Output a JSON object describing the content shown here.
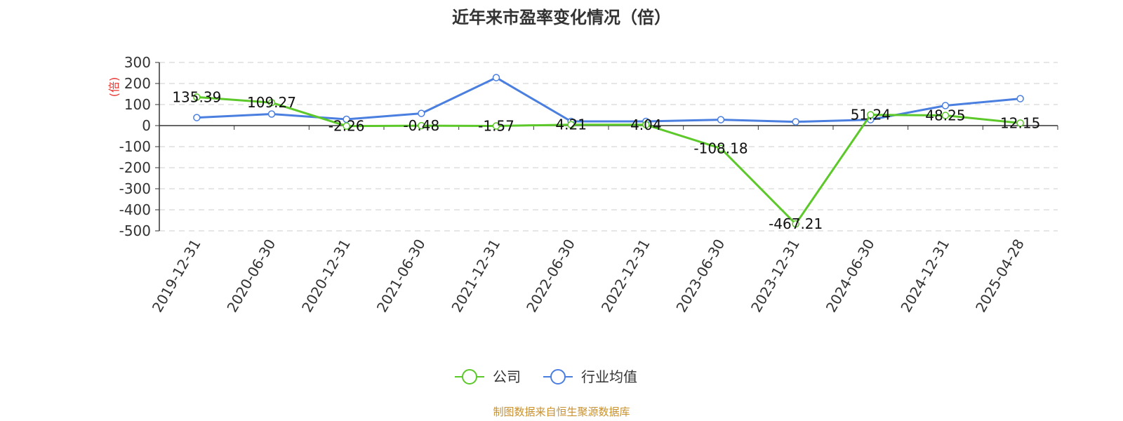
{
  "chart_data": {
    "type": "line",
    "title": "近年来市盈率变化情况（倍）",
    "y_unit_label": "(倍)",
    "categories": [
      "2019-12-31",
      "2020-06-30",
      "2020-12-31",
      "2021-06-30",
      "2021-12-31",
      "2022-06-30",
      "2022-12-31",
      "2023-06-30",
      "2023-12-31",
      "2024-06-30",
      "2024-12-31",
      "2025-04-28"
    ],
    "series": [
      {
        "name": "公司",
        "color": "#5cc82a",
        "values": [
          135.39,
          109.27,
          -2.26,
          -0.48,
          -1.57,
          4.21,
          4.04,
          -108.18,
          -467.21,
          51.24,
          48.25,
          12.15
        ],
        "labels": [
          "135.39",
          "109.27",
          "-2.26",
          "-0.48",
          "-1.57",
          "4.21",
          "4.04",
          "-108.18",
          "-467.21",
          "51.24",
          "48.25",
          "12.15"
        ]
      },
      {
        "name": "行业均值",
        "color": "#4a7fe0",
        "values": [
          38,
          55,
          30,
          58,
          228,
          20,
          20,
          28,
          18,
          28,
          95,
          128
        ]
      }
    ],
    "ylim": [
      -500,
      300
    ],
    "yticks": [
      300,
      200,
      100,
      0,
      -100,
      -200,
      -300,
      -400,
      -500
    ],
    "grid": true,
    "legend_position": "bottom-center"
  },
  "source": "制图数据来自恒生聚源数据库"
}
